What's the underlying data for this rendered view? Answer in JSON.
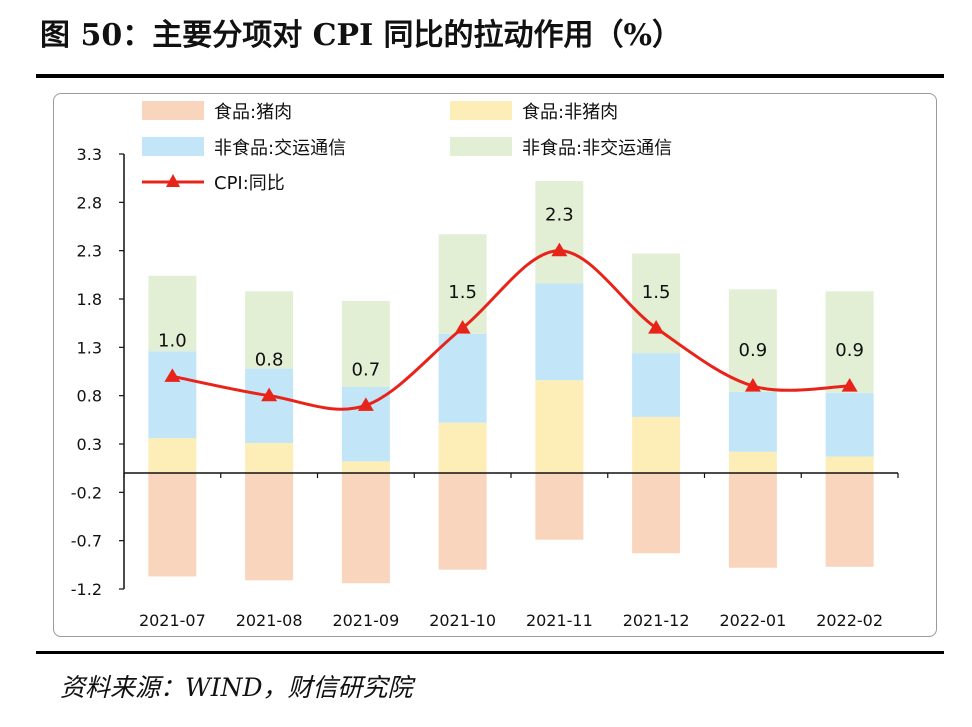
{
  "title": "图 50：主要分项对 CPI 同比的拉动作用（%）",
  "source": "资料来源：WIND，财信研究院",
  "colors": {
    "pork": "#f8d5bc",
    "non_pork_food": "#fdedb6",
    "transport": "#c2e6f8",
    "non_transport": "#e2efd5",
    "cpi_line": "#e8241a",
    "axis": "#111111"
  },
  "chart_data": {
    "type": "bar",
    "stacked": true,
    "categories": [
      "2021-07",
      "2021-08",
      "2021-09",
      "2021-10",
      "2021-11",
      "2021-12",
      "2022-01",
      "2022-02"
    ],
    "series": [
      {
        "name": "食品:猪肉",
        "key": "pork",
        "values": [
          -1.07,
          -1.11,
          -1.14,
          -1.0,
          -0.69,
          -0.83,
          -0.98,
          -0.97
        ]
      },
      {
        "name": "食品:非猪肉",
        "key": "non_pork_food",
        "values": [
          0.36,
          0.31,
          0.12,
          0.52,
          0.96,
          0.58,
          0.22,
          0.17
        ]
      },
      {
        "name": "非食品:交运通信",
        "key": "transport",
        "values": [
          0.9,
          0.77,
          0.77,
          0.92,
          1.0,
          0.66,
          0.62,
          0.66
        ]
      },
      {
        "name": "非食品:非交运通信",
        "key": "non_transport",
        "values": [
          0.78,
          0.8,
          0.89,
          1.03,
          1.06,
          1.03,
          1.06,
          1.05
        ]
      }
    ],
    "line": {
      "name": "CPI:同比",
      "values": [
        1.0,
        0.8,
        0.7,
        1.5,
        2.3,
        1.5,
        0.9,
        0.9
      ],
      "labels": [
        "1.0",
        "0.8",
        "0.7",
        "1.5",
        "2.3",
        "1.5",
        "0.9",
        "0.9"
      ]
    },
    "yticks": [
      "3.3",
      "2.8",
      "2.3",
      "1.8",
      "1.3",
      "0.8",
      "0.3",
      "-0.2",
      "-0.7",
      "-1.2"
    ],
    "ylim": [
      -1.2,
      3.3
    ],
    "xlabel": "",
    "ylabel": "",
    "legend_position": "top"
  }
}
